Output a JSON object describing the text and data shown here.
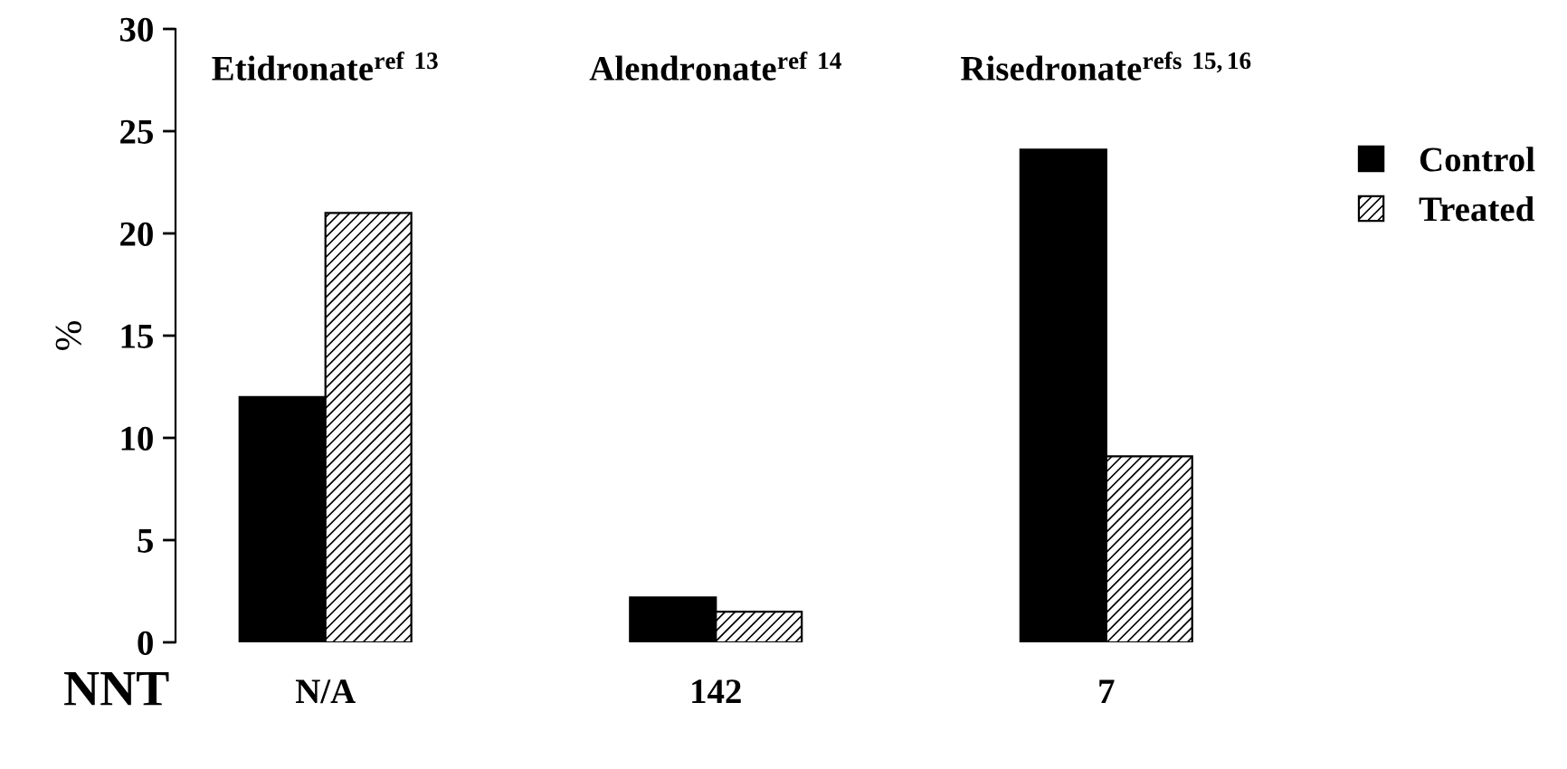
{
  "chart_data": {
    "type": "bar",
    "ylabel": "%",
    "categories": [
      "Etidronate$^{ref}$ $^{13}$",
      "Alendronate$^{ref}$ $^{14}$",
      "Risedronate$^{refs}$ $^{15,16}$"
    ],
    "series": [
      {
        "name": "Control",
        "color": "#000000",
        "values": [
          12.0,
          2.2,
          24.1
        ]
      },
      {
        "name": "Treated",
        "color": "#000000",
        "values": [
          21.0,
          1.5,
          9.1
        ]
      }
    ],
    "ylim": [
      0,
      30
    ],
    "yticks": [
      0,
      5,
      10,
      15,
      20,
      25,
      30
    ],
    "grid": false,
    "legend": "top right",
    "tick_labels": "y",
    "annotations": [
      "NNT",
      "N/A",
      "142",
      "7"
    ]
  }
}
